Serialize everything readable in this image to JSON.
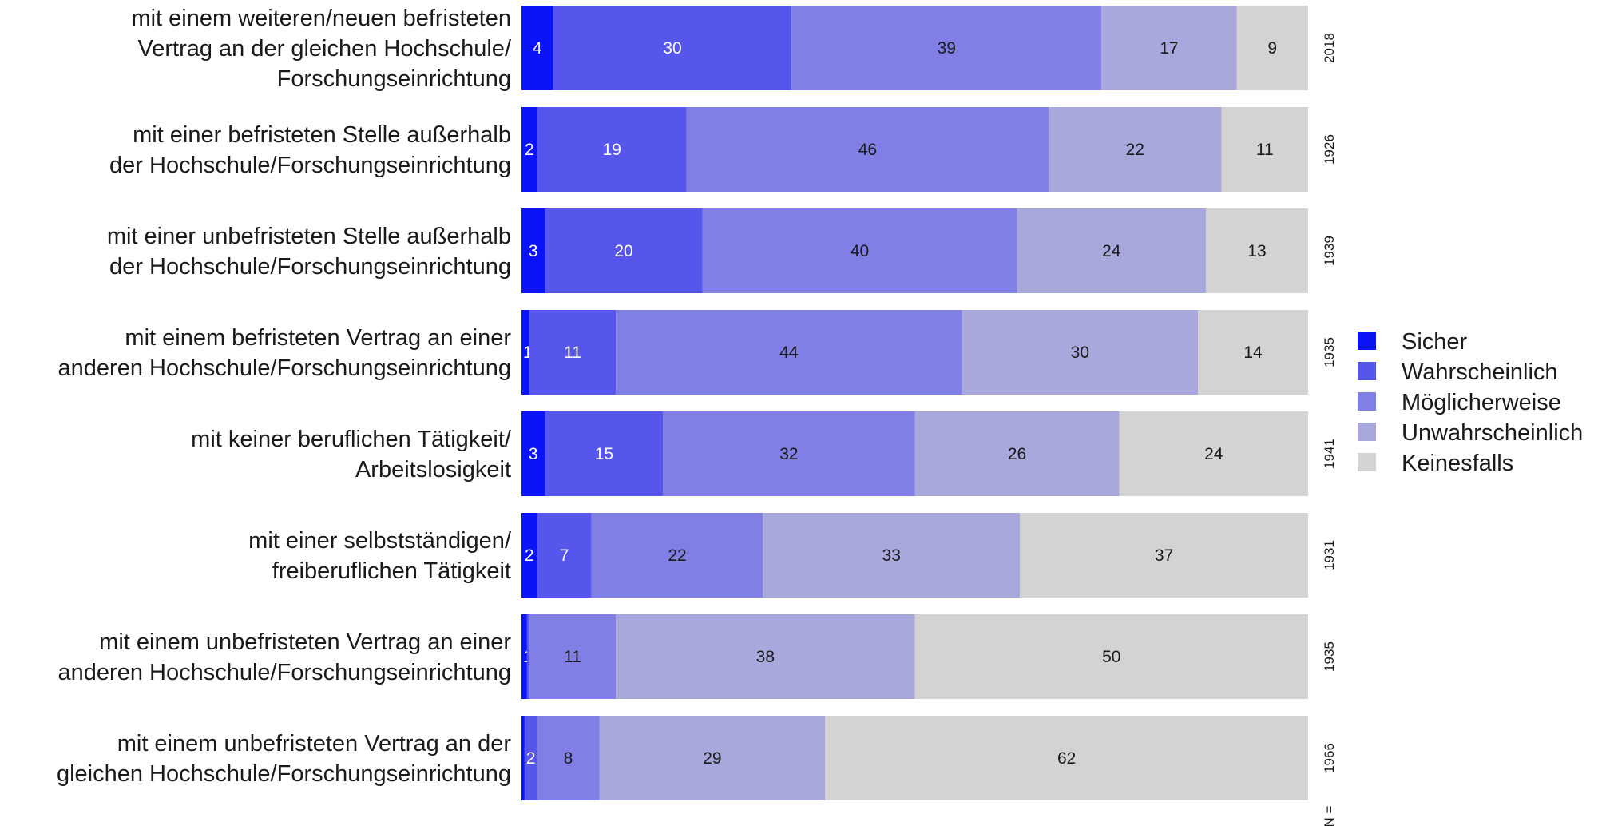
{
  "chart_data": {
    "type": "bar",
    "orientation": "horizontal",
    "stacked": true,
    "percent": true,
    "categories": [
      [
        "mit einem weiteren/neuen befristeten",
        "Vertrag an der gleichen Hochschule/",
        "Forschungseinrichtung"
      ],
      [
        "mit einer befristeten Stelle außerhalb",
        "der Hochschule/Forschungseinrichtung"
      ],
      [
        "mit einer unbefristeten Stelle außerhalb",
        "der Hochschule/Forschungseinrichtung"
      ],
      [
        "mit einem befristeten Vertrag an einer",
        "anderen Hochschule/Forschungseinrichtung"
      ],
      [
        "mit keiner beruflichen Tätigkeit/",
        "Arbeitslosigkeit"
      ],
      [
        "mit einer selbstständigen/",
        "freiberuflichen Tätigkeit"
      ],
      [
        "mit einem unbefristeten Vertrag an einer",
        "anderen Hochschule/Forschungseinrichtung"
      ],
      [
        "mit einem unbefristeten Vertrag an der",
        "gleichen Hochschule/Forschungseinrichtung"
      ]
    ],
    "n_values": [
      "2018",
      "1926",
      "1939",
      "1935",
      "1941",
      "1931",
      "1935",
      "1966"
    ],
    "n_label": "N =",
    "series": [
      {
        "name": "Sicher",
        "color": "#0b14f7",
        "label_color": "#ffffff",
        "values": [
          4,
          2,
          3,
          1,
          3,
          2,
          0.7,
          0.4
        ],
        "labels": [
          "4",
          "2",
          "3",
          "1",
          "3",
          "2",
          "1",
          ""
        ]
      },
      {
        "name": "Wahrscheinlich",
        "color": "#5656ec",
        "label_color": "#ffffff",
        "values": [
          30,
          19,
          20,
          11,
          15,
          7,
          0.3,
          1.6
        ],
        "labels": [
          "30",
          "19",
          "20",
          "11",
          "15",
          "7",
          "",
          "2"
        ]
      },
      {
        "name": "Möglicherweise",
        "color": "#7f7fe6",
        "label_color": "#1a1a1a",
        "values": [
          39,
          46,
          40,
          44,
          32,
          22,
          11,
          8
        ],
        "labels": [
          "39",
          "46",
          "40",
          "44",
          "32",
          "22",
          "11",
          "8"
        ]
      },
      {
        "name": "Unwahrscheinlich",
        "color": "#a8a8dd",
        "label_color": "#1a1a1a",
        "values": [
          17,
          22,
          24,
          30,
          26,
          33,
          38,
          29
        ],
        "labels": [
          "17",
          "22",
          "24",
          "30",
          "26",
          "33",
          "38",
          "29"
        ]
      },
      {
        "name": "Keinesfalls",
        "color": "#d3d3d3",
        "label_color": "#1a1a1a",
        "values": [
          9,
          11,
          13,
          14,
          24,
          37,
          50,
          62
        ],
        "labels": [
          "9",
          "11",
          "13",
          "14",
          "24",
          "37",
          "50",
          "62"
        ]
      }
    ],
    "xlim": [
      0,
      100
    ],
    "grid": false,
    "legend_position": "right"
  }
}
